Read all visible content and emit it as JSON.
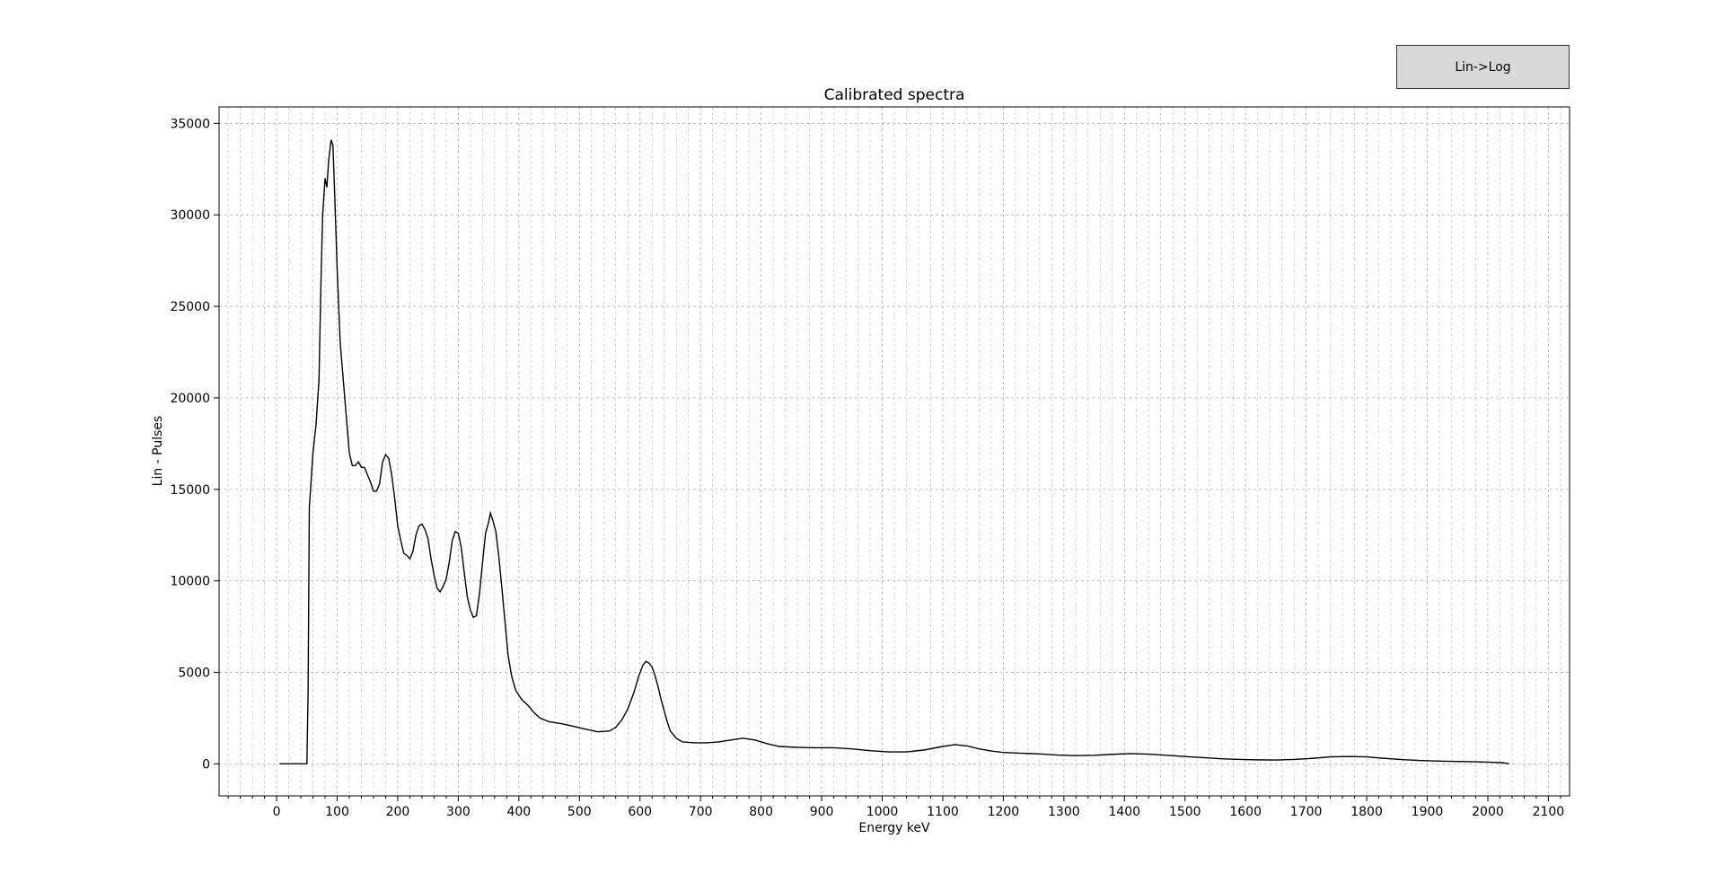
{
  "button": {
    "label": "Lin->Log"
  },
  "chart_data": {
    "type": "line",
    "title": "Calibrated spectra",
    "x_label": "Energy keV",
    "y_label": "Lin - Pulses",
    "xlim": [
      -95,
      2135
    ],
    "ylim": [
      -1750,
      35900
    ],
    "xticks": [
      0,
      100,
      200,
      300,
      400,
      500,
      600,
      700,
      800,
      900,
      1000,
      1100,
      1200,
      1300,
      1400,
      1500,
      1600,
      1700,
      1800,
      1900,
      2000,
      2100
    ],
    "xminorticks": [
      -80,
      -60,
      -40,
      -20,
      20,
      40,
      60,
      80,
      120,
      140,
      160,
      180,
      220,
      240,
      260,
      280,
      320,
      340,
      360,
      380,
      420,
      440,
      460,
      480,
      520,
      540,
      560,
      580,
      620,
      640,
      660,
      680,
      720,
      740,
      760,
      780,
      820,
      840,
      860,
      880,
      920,
      940,
      960,
      980,
      1020,
      1040,
      1060,
      1080,
      1120,
      1140,
      1160,
      1180,
      1220,
      1240,
      1260,
      1280,
      1320,
      1340,
      1360,
      1380,
      1420,
      1440,
      1460,
      1480,
      1520,
      1540,
      1560,
      1580,
      1620,
      1640,
      1660,
      1680,
      1720,
      1740,
      1760,
      1780,
      1820,
      1840,
      1860,
      1880,
      1920,
      1940,
      1960,
      1980,
      2020,
      2040,
      2060,
      2080,
      2120
    ],
    "yticks": [
      0,
      5000,
      10000,
      15000,
      20000,
      25000,
      30000,
      35000
    ],
    "grid": true,
    "color": "#000000",
    "x": [
      5,
      20,
      40,
      50,
      52,
      54,
      60,
      65,
      70,
      73,
      76,
      80,
      83,
      86,
      90,
      93,
      96,
      100,
      105,
      110,
      115,
      120,
      125,
      130,
      135,
      140,
      145,
      150,
      155,
      160,
      165,
      170,
      175,
      180,
      185,
      190,
      195,
      200,
      205,
      210,
      215,
      220,
      225,
      230,
      235,
      240,
      245,
      250,
      255,
      260,
      265,
      270,
      275,
      280,
      285,
      290,
      295,
      300,
      305,
      310,
      315,
      320,
      325,
      330,
      335,
      340,
      345,
      350,
      353,
      357,
      362,
      367,
      372,
      377,
      382,
      388,
      395,
      405,
      415,
      425,
      435,
      450,
      470,
      490,
      510,
      530,
      550,
      560,
      570,
      580,
      590,
      598,
      605,
      610,
      615,
      620,
      625,
      630,
      635,
      640,
      645,
      650,
      660,
      670,
      690,
      710,
      730,
      750,
      770,
      790,
      810,
      830,
      860,
      890,
      920,
      950,
      980,
      1010,
      1040,
      1070,
      1100,
      1120,
      1140,
      1160,
      1180,
      1200,
      1230,
      1260,
      1290,
      1320,
      1350,
      1380,
      1410,
      1440,
      1470,
      1500,
      1530,
      1560,
      1590,
      1620,
      1650,
      1680,
      1710,
      1740,
      1770,
      1800,
      1830,
      1860,
      1890,
      1920,
      1950,
      1980,
      2010,
      2025,
      2035
    ],
    "values": [
      0,
      0,
      0,
      0,
      4000,
      14000,
      17000,
      18500,
      21000,
      26000,
      30000,
      32000,
      31500,
      33000,
      34100,
      33800,
      31000,
      27000,
      23000,
      21000,
      19000,
      17000,
      16300,
      16300,
      16500,
      16200,
      16200,
      15800,
      15400,
      14900,
      14900,
      15300,
      16500,
      16900,
      16700,
      15800,
      14500,
      13000,
      12200,
      11500,
      11400,
      11200,
      11600,
      12500,
      13000,
      13100,
      12800,
      12300,
      11200,
      10300,
      9600,
      9400,
      9700,
      10100,
      11000,
      12200,
      12700,
      12600,
      11800,
      10400,
      9100,
      8400,
      8000,
      8100,
      9300,
      11000,
      12600,
      13200,
      13700,
      13300,
      12700,
      11300,
      9600,
      7800,
      6000,
      4800,
      4000,
      3500,
      3200,
      2800,
      2500,
      2300,
      2200,
      2050,
      1900,
      1750,
      1800,
      2000,
      2400,
      3000,
      3900,
      4800,
      5400,
      5600,
      5500,
      5300,
      4800,
      4200,
      3500,
      2900,
      2300,
      1800,
      1400,
      1200,
      1150,
      1150,
      1200,
      1300,
      1400,
      1300,
      1100,
      950,
      900,
      880,
      880,
      820,
      720,
      650,
      650,
      760,
      950,
      1050,
      980,
      820,
      700,
      620,
      580,
      540,
      480,
      450,
      470,
      520,
      560,
      530,
      470,
      400,
      340,
      280,
      240,
      220,
      210,
      240,
      300,
      380,
      400,
      380,
      300,
      230,
      180,
      150,
      130,
      110,
      80,
      60,
      0
    ]
  }
}
